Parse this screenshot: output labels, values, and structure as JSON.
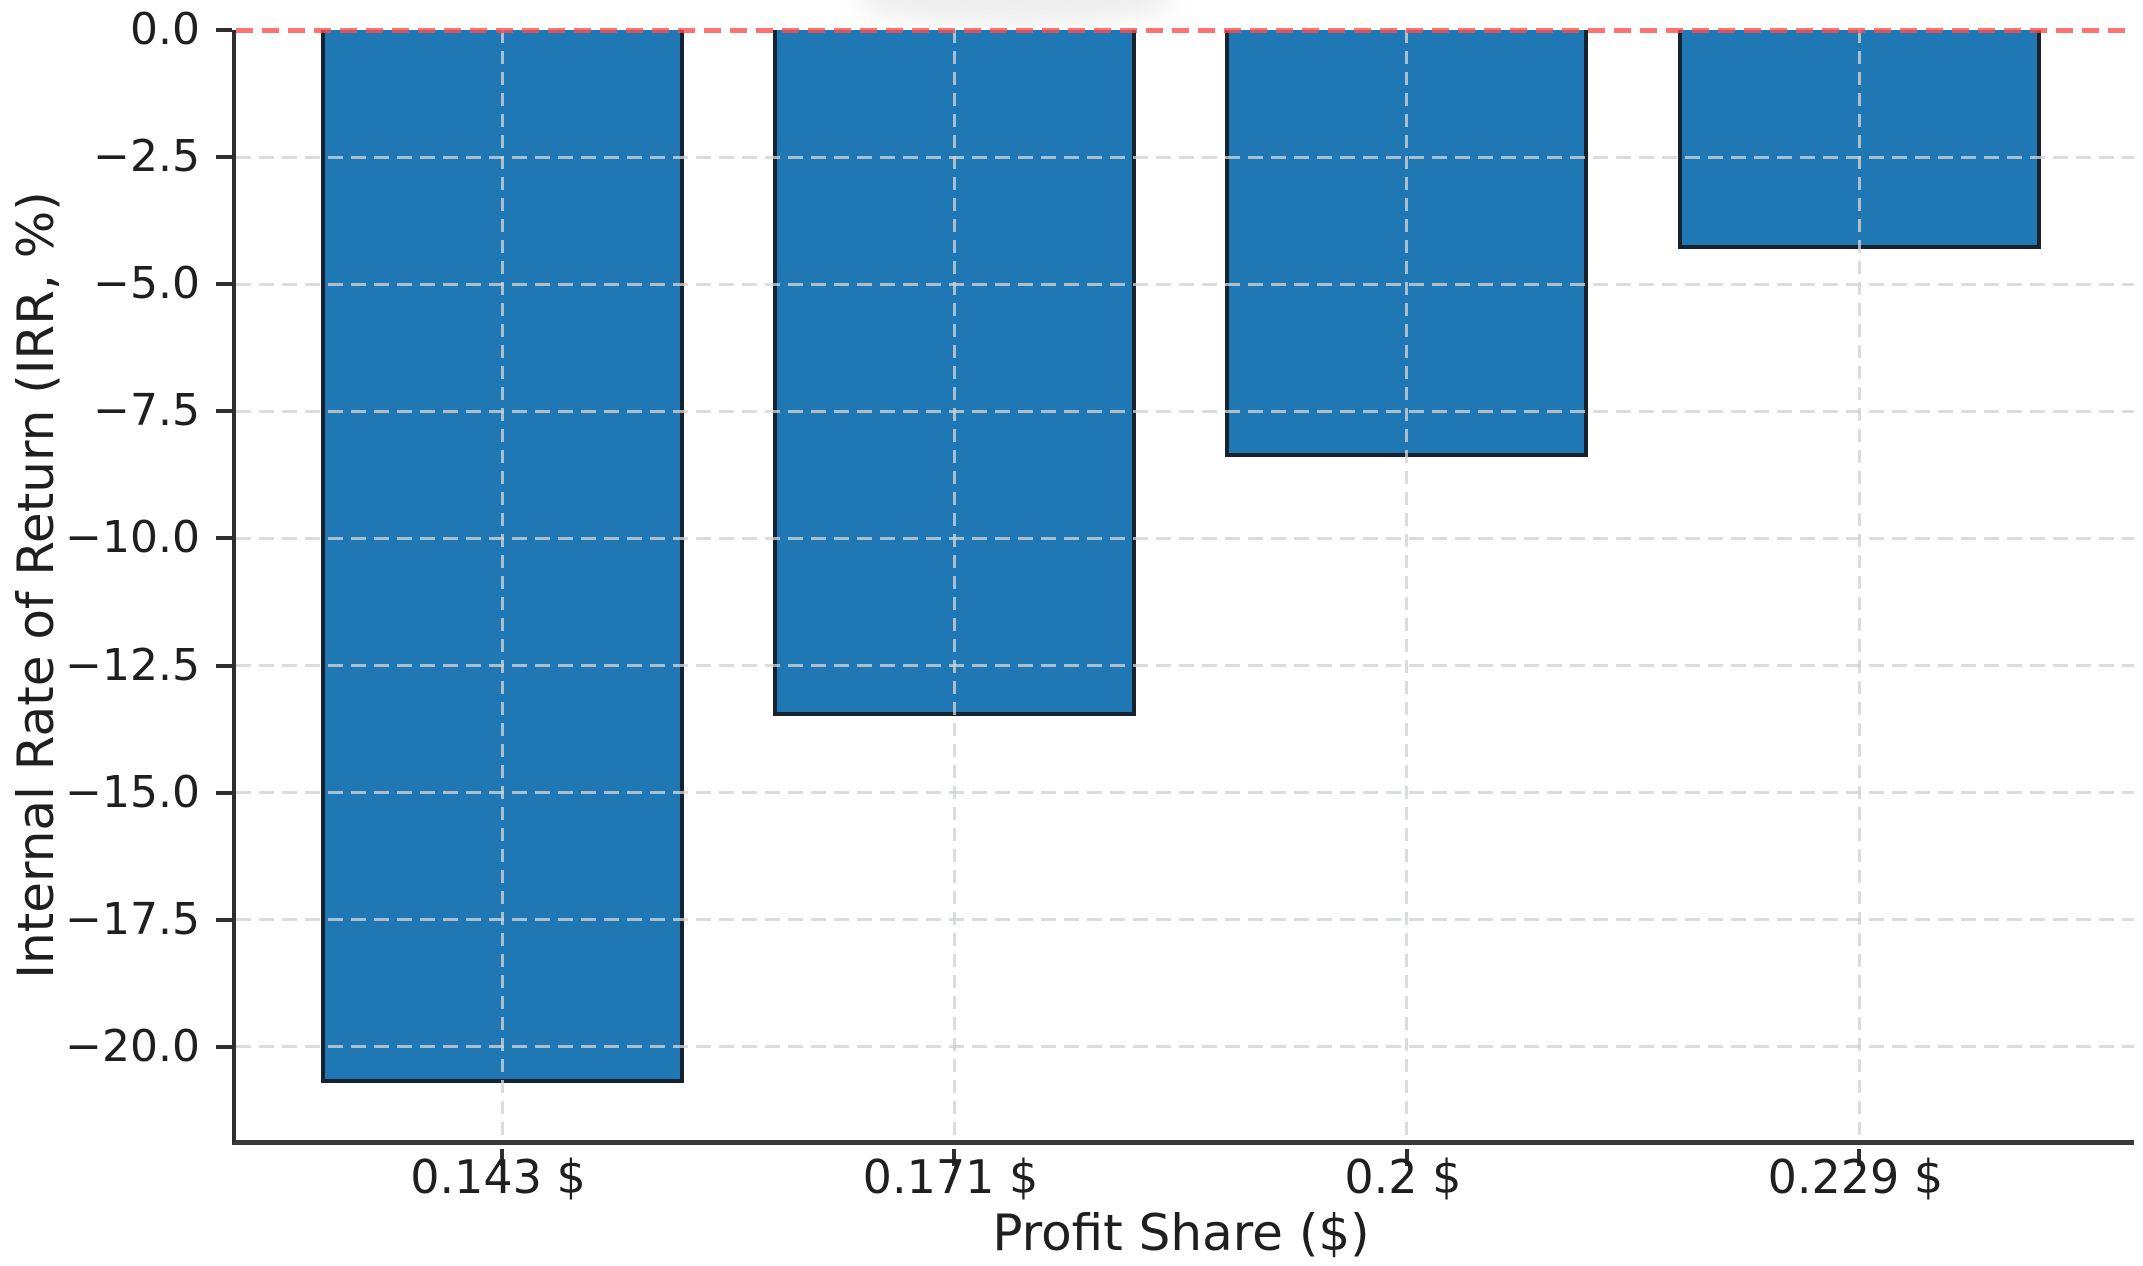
{
  "chart_data": {
    "type": "bar",
    "title": "",
    "xlabel": "Profit Share ($)",
    "ylabel": "Internal Rate of Return (IRR, %)",
    "categories": [
      "0.143 $",
      "0.171 $",
      "0.2 $",
      "0.229 $"
    ],
    "values": [
      -20.7,
      -13.5,
      -8.4,
      -4.3
    ],
    "ylim": [
      -21.83,
      0
    ],
    "yticks": [
      0.0,
      -2.5,
      -5.0,
      -7.5,
      -10.0,
      -12.5,
      -15.0,
      -17.5,
      -20.0
    ],
    "ytick_labels": [
      "0.0",
      "−2.5",
      "−5.0",
      "−7.5",
      "−10.0",
      "−12.5",
      "−15.0",
      "−17.5",
      "−20.0"
    ],
    "grid": true,
    "grid_style": "dashed",
    "legend": "none",
    "zero_line": {
      "value": 0,
      "style": "dashed",
      "color": "#ff4b4b"
    },
    "bar_color": "#1f77b4",
    "bar_edge_color": "#16222e"
  }
}
